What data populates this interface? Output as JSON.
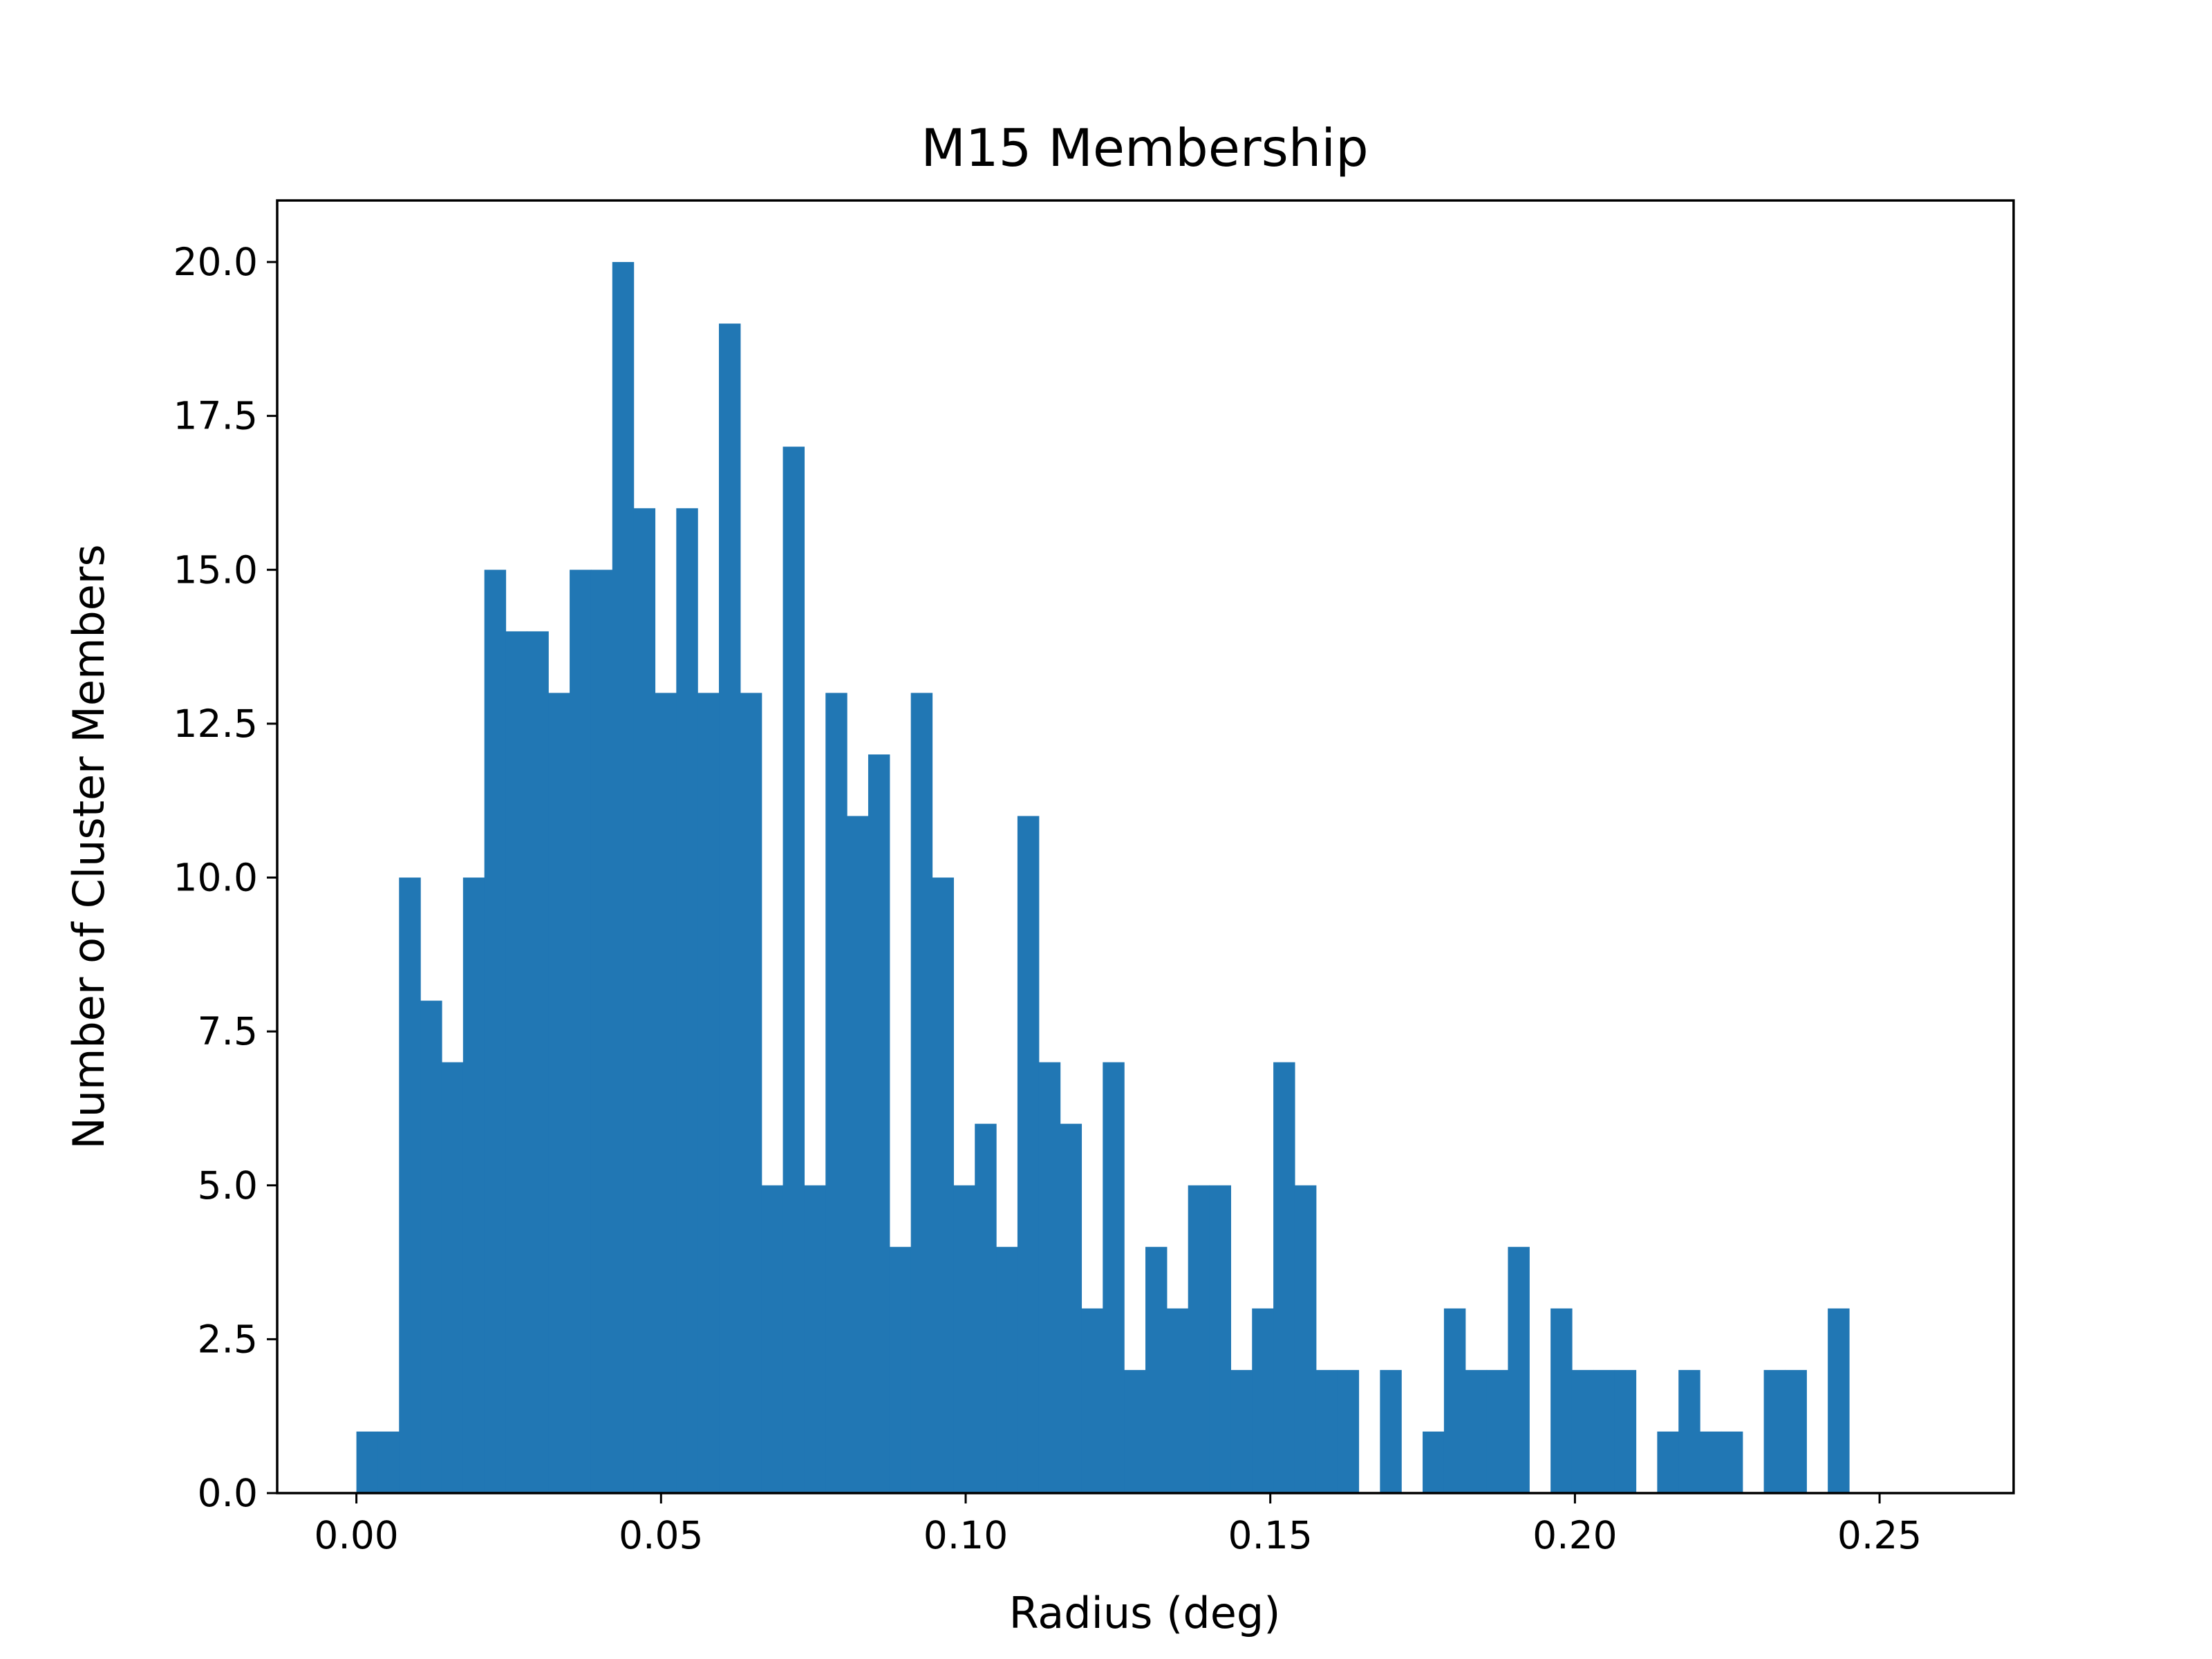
{
  "chart_data": {
    "type": "bar",
    "title": "M15 Membership",
    "xlabel": "Radius (deg)",
    "ylabel": "Number of Cluster Members",
    "xlim": [
      -0.013,
      0.272
    ],
    "ylim": [
      0,
      21
    ],
    "xticks": [
      "0.00",
      "0.05",
      "0.10",
      "0.15",
      "0.20",
      "0.25"
    ],
    "yticks": [
      "0.0",
      "2.5",
      "5.0",
      "7.5",
      "10.0",
      "12.5",
      "15.0",
      "17.5",
      "20.0"
    ],
    "bin_start": 0.0,
    "bin_width": 0.0035,
    "values": [
      1,
      1,
      10,
      8,
      7,
      10,
      15,
      14,
      14,
      13,
      15,
      15,
      20,
      16,
      13,
      16,
      13,
      19,
      13,
      5,
      17,
      5,
      13,
      11,
      12,
      4,
      13,
      10,
      5,
      6,
      4,
      11,
      7,
      6,
      3,
      7,
      2,
      4,
      3,
      5,
      5,
      2,
      3,
      7,
      5,
      2,
      2,
      0,
      2,
      0,
      1,
      3,
      2,
      2,
      4,
      0,
      3,
      2,
      2,
      2,
      0,
      1,
      2,
      1,
      1,
      0,
      2,
      2,
      0,
      3
    ],
    "bar_color": "#2177b4",
    "grid": false,
    "legend": false
  }
}
